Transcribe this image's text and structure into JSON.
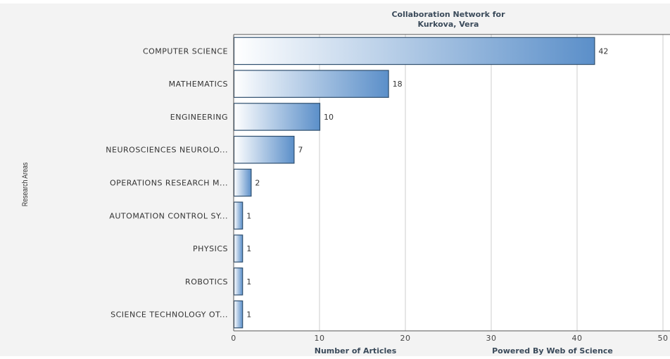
{
  "chart_data": {
    "type": "bar",
    "orientation": "horizontal",
    "title": "Collaboration Network for",
    "subtitle": "Kurkova, Vera",
    "xlabel": "Number of Articles",
    "ylabel": "Research Areas",
    "credit": "Powered By Web of Science",
    "categories": [
      "COMPUTER SCIENCE",
      "MATHEMATICS",
      "ENGINEERING",
      "NEUROSCIENCES NEUROLO...",
      "OPERATIONS RESEARCH M...",
      "AUTOMATION CONTROL SY...",
      "PHYSICS",
      "ROBOTICS",
      "SCIENCE TECHNOLOGY OT..."
    ],
    "values": [
      42,
      18,
      10,
      7,
      2,
      1,
      1,
      1,
      1
    ],
    "xlim": [
      0,
      50
    ],
    "xticks": [
      0,
      10,
      20,
      30,
      40,
      50
    ],
    "grid": true,
    "legend": "none",
    "colors": {
      "bar_start": "#ffffff",
      "bar_end": "#5b8fc9",
      "bar_border": "#2f4f6f",
      "grid": "#cccccc",
      "frame": "#555555",
      "background": "#f3f3f3",
      "plot_background": "#ffffff"
    }
  }
}
